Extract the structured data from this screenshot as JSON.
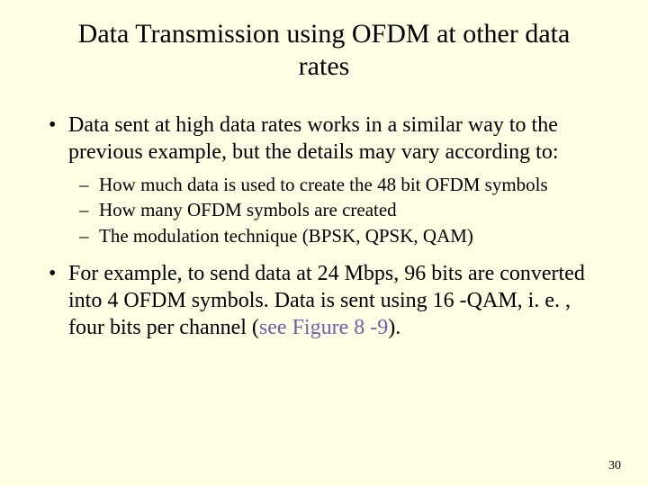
{
  "slide": {
    "background_color": "#ffffe5",
    "text_color": "#000000",
    "link_color": "#6f5faa",
    "font_family": "Times New Roman",
    "title": "Data Transmission using OFDM at other data rates",
    "title_fontsize": 30,
    "body_fontsize": 24,
    "sub_fontsize": 21,
    "bullets": [
      {
        "text": "Data sent at high data rates works in a similar way to the previous example, but the details may vary according to:",
        "sub_items": [
          "How much data is used to create the 48 bit OFDM symbols",
          "How many OFDM symbols are created",
          "The modulation technique (BPSK, QPSK, QAM)"
        ]
      },
      {
        "text_prefix": "For example, to send data at 24 Mbps, 96 bits are converted into 4 OFDM symbols. Data is sent using 16 -QAM, i. e. , four bits per channel (",
        "link_text": "see Figure 8 -9",
        "text_suffix": ")."
      }
    ],
    "page_number": "30"
  }
}
